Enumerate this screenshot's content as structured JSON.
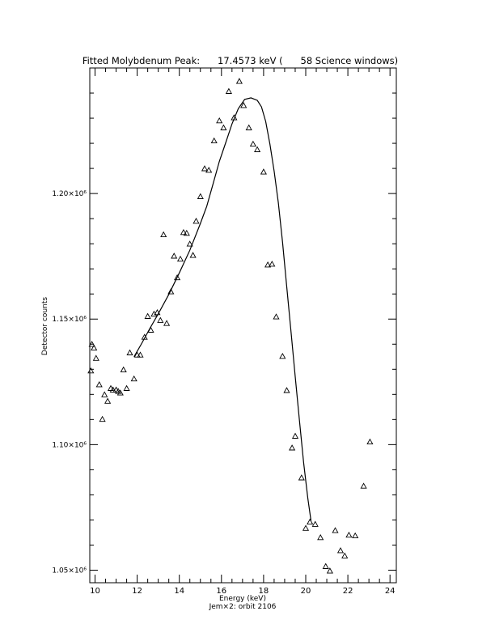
{
  "chart_data": {
    "type": "scatter",
    "title": "Fitted Molybdenum Peak:      17.4573 keV (      58 Science windows)",
    "xlabel": "Energy (keV)",
    "ylabel": "Detector counts",
    "caption": "Jem×2: orbit 2106",
    "xlim": [
      9.75,
      24.3
    ],
    "ylim": [
      1045000,
      1250000
    ],
    "x_ticks": [
      10,
      12,
      14,
      16,
      18,
      20,
      22,
      24
    ],
    "x_tick_labels": [
      "10",
      "12",
      "14",
      "16",
      "18",
      "20",
      "22",
      "24"
    ],
    "y_ticks": [
      1050000,
      1100000,
      1150000,
      1200000
    ],
    "y_tick_labels": [
      "1.05×10⁶",
      "1.10×10⁶",
      "1.15×10⁶",
      "1.20×10⁶"
    ],
    "grid": false,
    "series": [
      {
        "marker": "triangle",
        "points": [
          [
            9.8,
            1129400
          ],
          [
            9.85,
            1140000
          ],
          [
            9.95,
            1138500
          ],
          [
            10.05,
            1134400
          ],
          [
            10.2,
            1123900
          ],
          [
            10.35,
            1110100
          ],
          [
            10.45,
            1119900
          ],
          [
            10.6,
            1117300
          ],
          [
            10.75,
            1122400
          ],
          [
            10.85,
            1121800
          ],
          [
            11.0,
            1121800
          ],
          [
            11.1,
            1121200
          ],
          [
            11.2,
            1120600
          ],
          [
            11.35,
            1129800
          ],
          [
            11.5,
            1122400
          ],
          [
            11.65,
            1136600
          ],
          [
            11.85,
            1126200
          ],
          [
            12.0,
            1135700
          ],
          [
            12.15,
            1135700
          ],
          [
            12.35,
            1142800
          ],
          [
            12.5,
            1151100
          ],
          [
            12.65,
            1145600
          ],
          [
            12.8,
            1152000
          ],
          [
            12.95,
            1152600
          ],
          [
            13.1,
            1149500
          ],
          [
            13.25,
            1183600
          ],
          [
            13.4,
            1148300
          ],
          [
            13.6,
            1160900
          ],
          [
            13.75,
            1175100
          ],
          [
            13.9,
            1166500
          ],
          [
            14.05,
            1173900
          ],
          [
            14.2,
            1184500
          ],
          [
            14.35,
            1184200
          ],
          [
            14.5,
            1179900
          ],
          [
            14.65,
            1175400
          ],
          [
            14.8,
            1189000
          ],
          [
            15.0,
            1198800
          ],
          [
            15.2,
            1209900
          ],
          [
            15.4,
            1209300
          ],
          [
            15.65,
            1221000
          ],
          [
            15.9,
            1229000
          ],
          [
            16.1,
            1226200
          ],
          [
            16.35,
            1240700
          ],
          [
            16.6,
            1230200
          ],
          [
            16.85,
            1244700
          ],
          [
            17.05,
            1235100
          ],
          [
            17.3,
            1226200
          ],
          [
            17.5,
            1219700
          ],
          [
            17.7,
            1217500
          ],
          [
            18.0,
            1208600
          ],
          [
            18.2,
            1171600
          ],
          [
            18.4,
            1171900
          ],
          [
            18.6,
            1150900
          ],
          [
            18.9,
            1135200
          ],
          [
            19.1,
            1121600
          ],
          [
            19.35,
            1098700
          ],
          [
            19.5,
            1103400
          ],
          [
            19.8,
            1086800
          ],
          [
            20.0,
            1066700
          ],
          [
            20.2,
            1069200
          ],
          [
            20.45,
            1068300
          ],
          [
            20.7,
            1063000
          ],
          [
            20.95,
            1051500
          ],
          [
            21.15,
            1049700
          ],
          [
            21.4,
            1065800
          ],
          [
            21.65,
            1057800
          ],
          [
            21.85,
            1055700
          ],
          [
            22.05,
            1064000
          ],
          [
            22.35,
            1063700
          ],
          [
            22.75,
            1083500
          ],
          [
            23.05,
            1101100
          ]
        ]
      },
      {
        "name": "fit",
        "style": "line",
        "points": [
          [
            11.85,
            1135000
          ],
          [
            12.2,
            1140100
          ],
          [
            12.6,
            1146200
          ],
          [
            13.0,
            1152100
          ],
          [
            13.5,
            1159800
          ],
          [
            14.0,
            1168400
          ],
          [
            14.5,
            1177400
          ],
          [
            15.0,
            1188100
          ],
          [
            15.3,
            1194900
          ],
          [
            15.6,
            1203800
          ],
          [
            15.9,
            1212800
          ],
          [
            16.2,
            1220200
          ],
          [
            16.5,
            1227700
          ],
          [
            16.8,
            1233800
          ],
          [
            17.1,
            1237500
          ],
          [
            17.4,
            1238100
          ],
          [
            17.7,
            1237100
          ],
          [
            17.9,
            1234500
          ],
          [
            18.1,
            1228700
          ],
          [
            18.3,
            1219700
          ],
          [
            18.5,
            1209000
          ],
          [
            18.7,
            1196400
          ],
          [
            18.9,
            1180700
          ],
          [
            19.1,
            1162900
          ],
          [
            19.3,
            1145000
          ],
          [
            19.5,
            1127100
          ],
          [
            19.7,
            1109700
          ],
          [
            19.9,
            1092800
          ],
          [
            20.1,
            1078600
          ],
          [
            20.25,
            1069700
          ]
        ]
      }
    ]
  }
}
